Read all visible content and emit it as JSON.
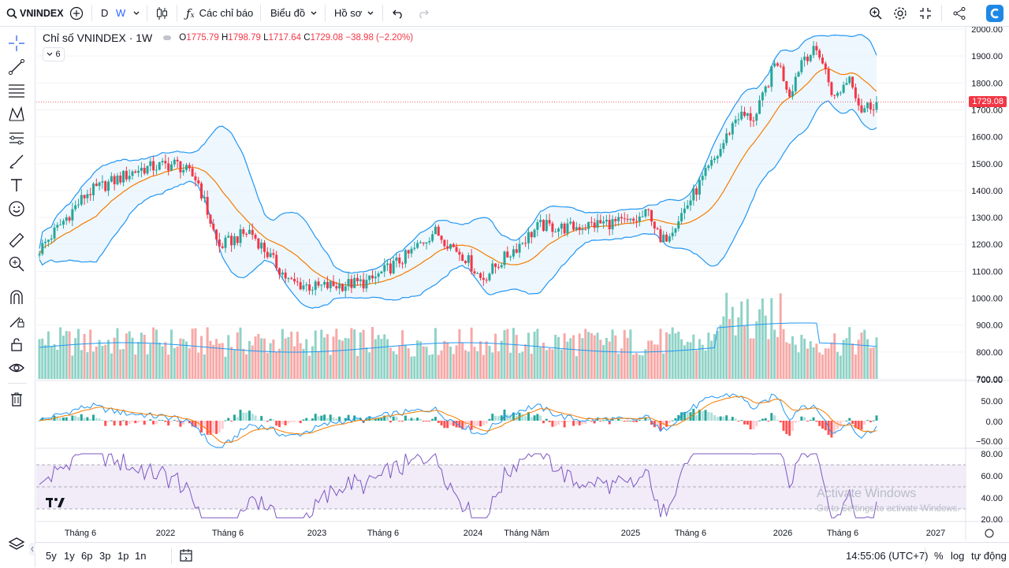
{
  "topbar": {
    "symbol": "VNINDEX",
    "interval_d": "D",
    "interval_w": "W",
    "indicators_label": "Các chỉ báo",
    "chart_type_label": "Biểu đồ",
    "profile_label": "Hồ sơ"
  },
  "legend": {
    "title": "Chỉ số VNINDEX · 1W",
    "o_label": "O",
    "o": "1775.79",
    "h_label": "H",
    "h": "1798.79",
    "l_label": "L",
    "l": "1717.64",
    "c_label": "C",
    "c": "1729.08",
    "change": "−38.98 (−2.20%)",
    "collapsed_count": "6"
  },
  "price_axis": [
    "2000.00",
    "1900.00",
    "1800.00",
    "1700.00",
    "1600.00",
    "1500.00",
    "1400.00",
    "1300.00",
    "1200.00",
    "1100.00",
    "1000.00",
    "900.00",
    "800.00",
    "700.00"
  ],
  "last_price": "1729.08",
  "macd_axis": [
    "700.00",
    "50.00",
    "0.00",
    "−50.00"
  ],
  "rsi_axis": [
    "80.00",
    "60.00",
    "40.00",
    "20.00"
  ],
  "time_axis": [
    "Tháng 6",
    "2022",
    "Tháng 6",
    "2023",
    "Tháng 6",
    "2024",
    "Tháng Năm",
    "2025",
    "Tháng 6",
    "2026",
    "Tháng 6",
    "2027"
  ],
  "bottombar": {
    "ranges": [
      "5y",
      "1y",
      "6p",
      "3p",
      "1p",
      "1n"
    ],
    "clock": "14:55:06 (UTC+7)",
    "percent": "%",
    "log": "log",
    "auto": "tự động"
  },
  "watermark": {
    "line1": "Activate Windows",
    "line2": "Go to Settings to activate Windows."
  },
  "colors": {
    "up": "#26a69a",
    "down": "#f23645",
    "band": "#2196f3",
    "ma": "#f57c00",
    "rsi": "#7e57c2",
    "accent": "#2962ff"
  },
  "chart_data": {
    "type": "candlestick",
    "title": "Chỉ số VNINDEX · 1W",
    "ylim": [
      700,
      2000
    ],
    "x": [
      "2021-06",
      "2022-01",
      "2022-06",
      "2023-01",
      "2023-06",
      "2024-01",
      "2024-05",
      "2025-01",
      "2025-06",
      "2026-01",
      "2026-06"
    ],
    "close": [
      1350,
      1480,
      1190,
      1060,
      1120,
      1160,
      1260,
      1270,
      1420,
      1800,
      1729
    ],
    "last": {
      "open": 1775.79,
      "high": 1798.79,
      "low": 1717.64,
      "close": 1729.08,
      "change": -38.98,
      "change_pct": -2.2
    }
  }
}
